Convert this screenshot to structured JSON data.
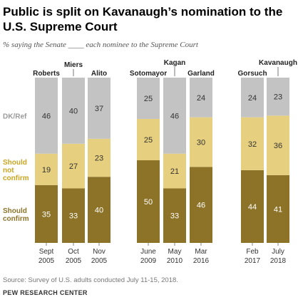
{
  "title": "Public is split on Kavanaugh’s  nomination to the U.S. Supreme Court",
  "subtitle": "% saying the Senate ____ each nominee to the Supreme Court",
  "source": "Source: Survey of U.S. adults conducted July 11-15, 2018.",
  "footer": "PEW RESEARCH CENTER",
  "colors": {
    "should_confirm": "#8c7328",
    "should_not_confirm": "#e6cf7e",
    "dk_ref": "#c3c3c3",
    "confirm_label": "#8c7328",
    "not_confirm_label": "#c9a520",
    "dk_label": "#9a9a9a"
  },
  "chart_data": {
    "type": "bar",
    "stacked": true,
    "orientation": "vertical",
    "ylim": [
      0,
      100
    ],
    "categories": [
      {
        "nominee": "Roberts",
        "date": [
          "Sept",
          "2005"
        ]
      },
      {
        "nominee": "Miers",
        "date": [
          "Oct",
          "2005"
        ]
      },
      {
        "nominee": "Alito",
        "date": [
          "Nov",
          "2005"
        ]
      },
      {
        "nominee": "Sotomayor",
        "date": [
          "June",
          "2009"
        ]
      },
      {
        "nominee": "Kagan",
        "date": [
          "May",
          "2010"
        ]
      },
      {
        "nominee": "Garland",
        "date": [
          "Mar",
          "2016"
        ]
      },
      {
        "nominee": "Gorsuch",
        "date": [
          "Feb",
          "2017"
        ]
      },
      {
        "nominee": "Kavanaugh",
        "date": [
          "July",
          "2018"
        ]
      }
    ],
    "series": [
      {
        "name": "Should confirm",
        "label_lines": [
          "Should",
          "confirm"
        ],
        "values": [
          35,
          33,
          40,
          50,
          33,
          46,
          44,
          41
        ]
      },
      {
        "name": "Should not confirm",
        "label_lines": [
          "Should",
          "not",
          "confirm"
        ],
        "values": [
          19,
          27,
          23,
          25,
          21,
          30,
          32,
          36
        ]
      },
      {
        "name": "DK/Ref",
        "label_lines": [
          "DK/Ref"
        ],
        "values": [
          46,
          40,
          37,
          25,
          46,
          24,
          24,
          23
        ]
      }
    ]
  }
}
